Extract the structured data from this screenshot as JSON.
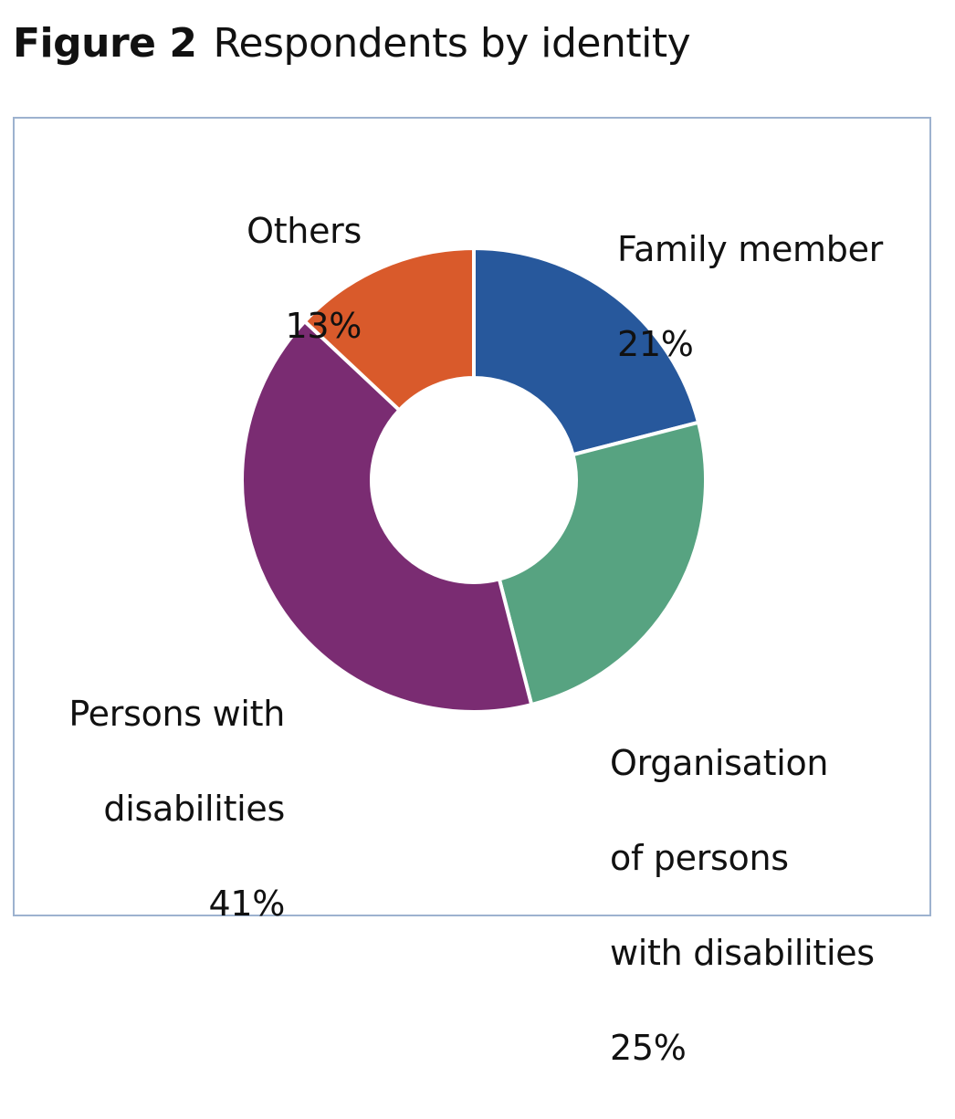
{
  "figure": {
    "number": "Figure 2",
    "title": "Respondents by identity"
  },
  "colors": {
    "frame_border": "#9db2cf",
    "slice_separator": "#ffffff"
  },
  "chart_data": {
    "type": "pie",
    "variant": "donut",
    "start": "12 o'clock",
    "direction": "clockwise",
    "slices": [
      {
        "label": "Family member",
        "value": 21,
        "value_label": "21%",
        "color": "#27589c"
      },
      {
        "label": "Organisation of persons with disabilities",
        "value": 25,
        "value_label": "25%",
        "color": "#57a381"
      },
      {
        "label": "Persons with disabilities",
        "value": 41,
        "value_label": "41%",
        "color": "#7a2c72"
      },
      {
        "label": "Others",
        "value": 13,
        "value_label": "13%",
        "color": "#d95a2b"
      }
    ]
  },
  "labels": {
    "family": {
      "name": "Family member",
      "pct": "21%"
    },
    "org": {
      "line1": "Organisation",
      "line2": "of persons",
      "line3": "with disabilities",
      "pct": "25%"
    },
    "pwd": {
      "line1": "Persons with",
      "line2": "disabilities",
      "pct": "41%"
    },
    "others": {
      "name": "Others",
      "pct": "13%"
    }
  }
}
